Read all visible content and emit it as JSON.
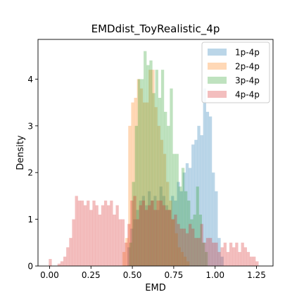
{
  "chart_data": {
    "type": "bar",
    "title": "EMDdist_ToyRealistic_4p",
    "xlabel": "EMD",
    "ylabel": "Density",
    "xlim": [
      -0.07,
      1.35
    ],
    "ylim": [
      0,
      4.85
    ],
    "xticks": [
      0.0,
      0.25,
      0.5,
      0.75,
      1.0,
      1.25
    ],
    "xtick_labels": [
      "0.00",
      "0.25",
      "0.50",
      "0.75",
      "1.00",
      "1.25"
    ],
    "yticks": [
      0,
      1,
      2,
      3,
      4
    ],
    "ytick_labels": [
      "0",
      "1",
      "2",
      "3",
      "4"
    ],
    "grid": false,
    "legend_position": "top-right",
    "series": [
      {
        "name": "1p-4p",
        "color": "#1f77b4",
        "alpha": 0.3,
        "bin_start": 0.47,
        "bin_width": 0.0176,
        "values": [
          0.4,
          0.8,
          1.0,
          1.2,
          1.4,
          1.5,
          1.3,
          1.6,
          1.4,
          1.5,
          1.2,
          1.7,
          1.5,
          1.3,
          1.2,
          1.5,
          1.4,
          1.8,
          1.6,
          2.0,
          2.2,
          2.1,
          2.6,
          2.7,
          3.0,
          2.8,
          3.8,
          3.3,
          3.2,
          2.0,
          1.6,
          0.6,
          0.2
        ]
      },
      {
        "name": "2p-4p",
        "color": "#ff7f0e",
        "alpha": 0.3,
        "bin_start": 0.44,
        "bin_width": 0.0176,
        "values": [
          0.3,
          0.6,
          3.0,
          3.5,
          3.6,
          4.0,
          3.8,
          3.5,
          3.5,
          4.2,
          4.2,
          3.4,
          3.0,
          2.7,
          2.4,
          1.8,
          1.4,
          1.0,
          0.7,
          0.4,
          0.3,
          0.2,
          0.1
        ]
      },
      {
        "name": "3p-4p",
        "color": "#2ca02c",
        "alpha": 0.3,
        "bin_start": 0.48,
        "bin_width": 0.0176,
        "values": [
          0.5,
          1.8,
          3.0,
          4.0,
          4.0,
          4.6,
          4.3,
          4.4,
          3.7,
          4.2,
          3.6,
          4.2,
          3.3,
          3.0,
          3.8,
          2.4,
          2.4,
          1.7,
          2.1,
          1.6,
          1.4,
          1.0,
          1.1,
          1.7,
          1.1,
          0.5,
          0.3
        ]
      },
      {
        "name": "4p-4p",
        "color": "#d62728",
        "alpha": 0.3,
        "bin_start": -0.005,
        "bin_width": 0.0176,
        "values": [
          0.15,
          0.0,
          0.0,
          0.05,
          0.1,
          0.2,
          0.4,
          0.6,
          1.0,
          1.5,
          1.4,
          1.4,
          1.3,
          1.4,
          1.2,
          1.4,
          1.3,
          1.1,
          1.3,
          1.4,
          1.3,
          1.4,
          1.1,
          1.3,
          1.0,
          1.0,
          0.5,
          0.9,
          1.4,
          1.5,
          1.0,
          1.3,
          1.4,
          1.2,
          1.3,
          1.4,
          1.2,
          1.4,
          1.4,
          1.3,
          1.2,
          1.2,
          1.0,
          1.1,
          0.9,
          0.8,
          0.8,
          0.7,
          0.9,
          0.8,
          0.6,
          0.6,
          0.9,
          0.5,
          0.6,
          0.6,
          0.5,
          0.5,
          0.3,
          0.4,
          0.5,
          0.3,
          0.5,
          0.4,
          0.5,
          0.3,
          0.5,
          0.4,
          0.3,
          0.2,
          0.2,
          0.1
        ]
      }
    ]
  }
}
